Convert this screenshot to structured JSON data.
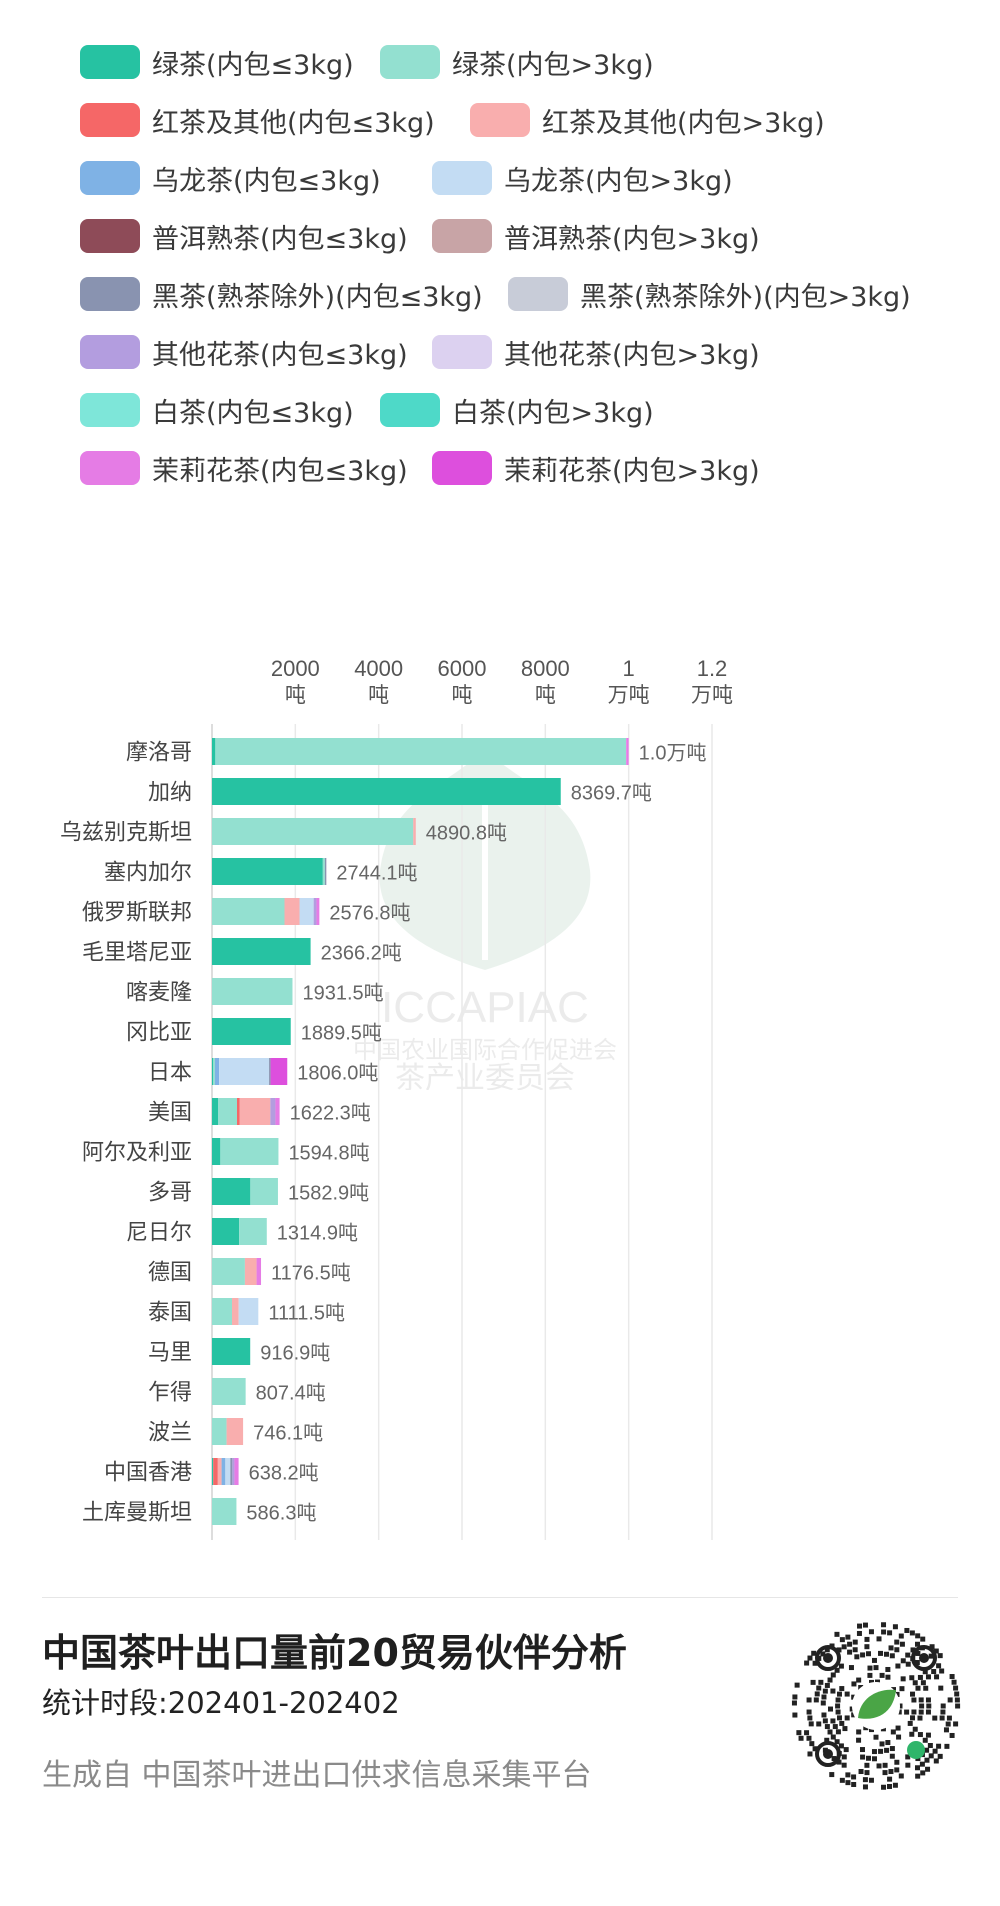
{
  "legend": [
    {
      "label": "绿茶(内包≤3kg)",
      "color": "#26C2A2"
    },
    {
      "label": "绿茶(内包>3kg)",
      "color": "#93E0D0"
    },
    {
      "label": "红茶及其他(内包≤3kg)",
      "color": "#F56767"
    },
    {
      "label": "红茶及其他(内包>3kg)",
      "color": "#F9AEAE"
    },
    {
      "label": "乌龙茶(内包≤3kg)",
      "color": "#7FB2E5"
    },
    {
      "label": "乌龙茶(内包>3kg)",
      "color": "#C3DCF3"
    },
    {
      "label": "普洱熟茶(内包≤3kg)",
      "color": "#8E4B58"
    },
    {
      "label": "普洱熟茶(内包>3kg)",
      "color": "#C8A4A6"
    },
    {
      "label": "黑茶(熟茶除外)(内包≤3kg)",
      "color": "#8993B0"
    },
    {
      "label": "黑茶(熟茶除外)(内包>3kg)",
      "color": "#C8CCD8"
    },
    {
      "label": "其他花茶(内包≤3kg)",
      "color": "#B39DDF"
    },
    {
      "label": "其他花茶(内包>3kg)",
      "color": "#DCD1F0"
    },
    {
      "label": "白茶(内包≤3kg)",
      "color": "#7EE6D9"
    },
    {
      "label": "白茶(内包>3kg)",
      "color": "#4ED9C8"
    },
    {
      "label": "茉莉花茶(内包≤3kg)",
      "color": "#E57CE5"
    },
    {
      "label": "茉莉花茶(内包>3kg)",
      "color": "#DD4FDD"
    }
  ],
  "chart_data": {
    "type": "bar",
    "orientation": "horizontal",
    "stacked": true,
    "xlim": [
      0,
      12000
    ],
    "x_ticks": [
      {
        "value": 2000,
        "line1": "2000",
        "line2": "吨"
      },
      {
        "value": 4000,
        "line1": "4000",
        "line2": "吨"
      },
      {
        "value": 6000,
        "line1": "6000",
        "line2": "吨"
      },
      {
        "value": 8000,
        "line1": "8000",
        "line2": "吨"
      },
      {
        "value": 10000,
        "line1": "1",
        "line2": "万吨"
      },
      {
        "value": 12000,
        "line1": "1.2",
        "line2": "万吨"
      }
    ],
    "grid": true,
    "categories": [
      "摩洛哥",
      "加纳",
      "乌兹别克斯坦",
      "塞内加尔",
      "俄罗斯联邦",
      "毛里塔尼亚",
      "喀麦隆",
      "冈比亚",
      "日本",
      "美国",
      "阿尔及利亚",
      "多哥",
      "尼日尔",
      "德国",
      "泰国",
      "马里",
      "乍得",
      "波兰",
      "中国香港",
      "土库曼斯坦"
    ],
    "totals": [
      10000,
      8369.7,
      4890.8,
      2744.1,
      2576.8,
      2366.2,
      1931.5,
      1889.5,
      1806.0,
      1622.3,
      1594.8,
      1582.9,
      1314.9,
      1176.5,
      1111.5,
      916.9,
      807.4,
      746.1,
      638.2,
      586.3
    ],
    "total_labels": [
      "1.0万吨",
      "8369.7吨",
      "4890.8吨",
      "2744.1吨",
      "2576.8吨",
      "2366.2吨",
      "1931.5吨",
      "1889.5吨",
      "1806.0吨",
      "1622.3吨",
      "1594.8吨",
      "1582.9吨",
      "1314.9吨",
      "1176.5吨",
      "1111.5吨",
      "916.9吨",
      "807.4吨",
      "746.1吨",
      "638.2吨",
      "586.3吨"
    ],
    "series": [
      {
        "name": "绿茶(内包≤3kg)",
        "values": [
          80,
          8369.7,
          0,
          2660,
          0,
          2366.2,
          0,
          1889.5,
          30,
          150,
          200,
          920,
          650,
          0,
          0,
          916.9,
          0,
          0,
          30,
          0
        ]
      },
      {
        "name": "绿茶(内包>3kg)",
        "values": [
          9860,
          0,
          4830,
          50,
          1740,
          0,
          1931.5,
          0,
          40,
          450,
          1394.8,
          662.9,
          664.9,
          790,
          480,
          0,
          807.4,
          350,
          0,
          586.3
        ]
      },
      {
        "name": "红茶及其他(内包≤3kg)",
        "values": [
          0,
          0,
          0,
          0,
          0,
          0,
          0,
          0,
          0,
          60,
          0,
          0,
          0,
          0,
          0,
          0,
          0,
          0,
          110,
          0
        ]
      },
      {
        "name": "红茶及其他(内包>3kg)",
        "values": [
          0,
          0,
          60.8,
          0,
          360,
          0,
          0,
          0,
          0,
          740,
          0,
          0,
          0,
          280,
          160,
          0,
          0,
          396.1,
          90,
          0
        ]
      },
      {
        "name": "乌龙茶(内包≤3kg)",
        "values": [
          0,
          0,
          0,
          0,
          0,
          0,
          0,
          0,
          100,
          0,
          0,
          0,
          0,
          0,
          0,
          0,
          0,
          0,
          90,
          0
        ]
      },
      {
        "name": "乌龙茶(内包>3kg)",
        "values": [
          0,
          0,
          0,
          0,
          340,
          0,
          0,
          0,
          1200,
          0,
          0,
          0,
          0,
          0,
          471.5,
          0,
          0,
          0,
          120,
          0
        ]
      },
      {
        "name": "普洱熟茶(内包≤3kg)",
        "values": [
          0,
          0,
          0,
          0,
          0,
          0,
          0,
          0,
          0,
          0,
          0,
          0,
          0,
          0,
          0,
          0,
          0,
          0,
          0,
          0
        ]
      },
      {
        "name": "普洱熟茶(内包>3kg)",
        "values": [
          0,
          0,
          0,
          0,
          0,
          0,
          0,
          0,
          0,
          0,
          0,
          0,
          0,
          0,
          0,
          0,
          0,
          0,
          0,
          0
        ]
      },
      {
        "name": "黑茶(熟茶除外)(内包≤3kg)",
        "values": [
          0,
          0,
          0,
          34.1,
          0,
          0,
          0,
          0,
          36,
          0,
          0,
          0,
          0,
          0,
          0,
          0,
          0,
          0,
          48.2,
          0
        ]
      },
      {
        "name": "黑茶(熟茶除外)(内包>3kg)",
        "values": [
          0,
          0,
          0,
          0,
          0,
          0,
          0,
          0,
          0,
          0,
          0,
          0,
          0,
          0,
          0,
          0,
          0,
          0,
          0,
          0
        ]
      },
      {
        "name": "其他花茶(内包≤3kg)",
        "values": [
          0,
          0,
          0,
          0,
          66.8,
          0,
          0,
          0,
          0,
          122.3,
          0,
          0,
          0,
          0,
          0,
          0,
          0,
          0,
          50,
          0
        ]
      },
      {
        "name": "其他花茶(内包>3kg)",
        "values": [
          0,
          0,
          0,
          0,
          0,
          0,
          0,
          0,
          0,
          0,
          0,
          0,
          0,
          0,
          0,
          0,
          0,
          0,
          0,
          0
        ]
      },
      {
        "name": "白茶(内包≤3kg)",
        "values": [
          0,
          0,
          0,
          0,
          0,
          0,
          0,
          0,
          0,
          0,
          0,
          0,
          0,
          0,
          0,
          0,
          0,
          0,
          0,
          0
        ]
      },
      {
        "name": "白茶(内包>3kg)",
        "values": [
          0,
          0,
          0,
          0,
          0,
          0,
          0,
          0,
          0,
          0,
          0,
          0,
          0,
          0,
          0,
          0,
          0,
          0,
          0,
          0
        ]
      },
      {
        "name": "茉莉花茶(内包≤3kg)",
        "values": [
          60,
          0,
          0,
          0,
          70,
          0,
          0,
          0,
          0,
          100,
          0,
          0,
          0,
          106.5,
          0,
          0,
          0,
          0,
          100,
          0
        ]
      },
      {
        "name": "茉莉花茶(内包>3kg)",
        "values": [
          0,
          0,
          0,
          0,
          0,
          0,
          0,
          0,
          400,
          0,
          0,
          0,
          0,
          0,
          0,
          0,
          0,
          0,
          0,
          0
        ]
      }
    ]
  },
  "watermark": {
    "org": "ICCAPIAC",
    "line1": "中国农业国际合作促进会",
    "line2": "茶产业委员会"
  },
  "footer": {
    "title": "中国茶叶出口量前20贸易伙伴分析",
    "period": "统计时段:202401-202402",
    "source": "生成自 中国茶叶进出口供求信息采集平台"
  }
}
